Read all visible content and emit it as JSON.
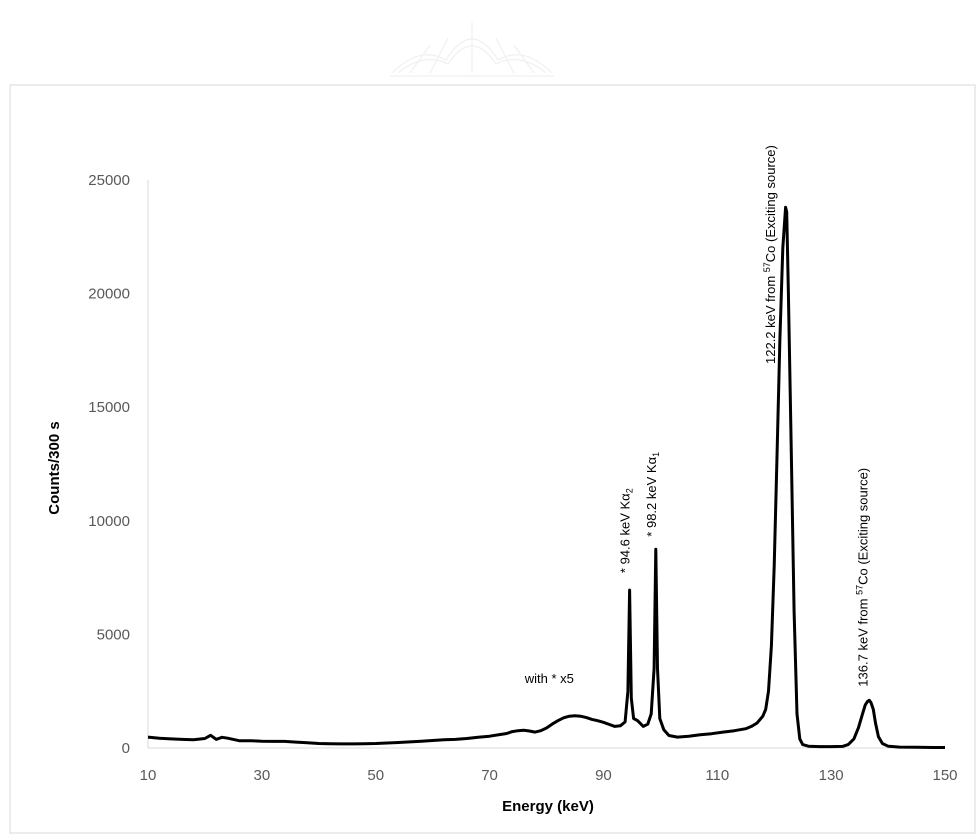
{
  "chart_data": {
    "type": "line",
    "title": "",
    "xlabel": "Energy (keV)",
    "ylabel": "Counts/300 s",
    "xlim": [
      10,
      150
    ],
    "ylim": [
      0,
      25000
    ],
    "x_ticks": [
      "10",
      "30",
      "50",
      "70",
      "90",
      "110",
      "130",
      "150"
    ],
    "y_ticks": [
      "0",
      "5000",
      "10000",
      "15000",
      "20000",
      "25000"
    ],
    "grid": false,
    "legend": "none",
    "line_color": "#000000",
    "series": [
      {
        "x": [
          10,
          12,
          14,
          16,
          18,
          20,
          21,
          22,
          23,
          24,
          26,
          28,
          30,
          32,
          34,
          36,
          38,
          40,
          42,
          44,
          46,
          48,
          50,
          52,
          54,
          56,
          58,
          60,
          62,
          64,
          66,
          68,
          70,
          72,
          73,
          74,
          75,
          76,
          77,
          78,
          79,
          80,
          81,
          82,
          83,
          84,
          85,
          86,
          87,
          88,
          89,
          90,
          91,
          92,
          93,
          93.8,
          94.3,
          94.6,
          94.9,
          95.3,
          96,
          97,
          97.8,
          98.4,
          98.9,
          99.2,
          99.5,
          99.9,
          100.6,
          101.5,
          103,
          105,
          107,
          109,
          111,
          113,
          115,
          116,
          117,
          118,
          118.5,
          119,
          119.5,
          120,
          120.5,
          121,
          121.5,
          122,
          122.2,
          122.5,
          123,
          123.5,
          124,
          124.5,
          125,
          126,
          128,
          130,
          132,
          133,
          134,
          134.8,
          135.5,
          136,
          136.4,
          136.7,
          137,
          137.4,
          137.8,
          138.3,
          139,
          140,
          142,
          145,
          148,
          150
        ],
        "y": [
          480,
          430,
          400,
          380,
          360,
          420,
          560,
          380,
          470,
          430,
          320,
          320,
          300,
          290,
          290,
          260,
          230,
          200,
          190,
          180,
          180,
          190,
          200,
          220,
          240,
          270,
          300,
          330,
          360,
          380,
          420,
          470,
          520,
          600,
          640,
          720,
          760,
          780,
          750,
          700,
          760,
          880,
          1050,
          1200,
          1330,
          1400,
          1420,
          1400,
          1340,
          1260,
          1200,
          1130,
          1040,
          950,
          980,
          1150,
          2500,
          6950,
          2200,
          1300,
          1200,
          950,
          1050,
          1500,
          3500,
          8750,
          3500,
          1300,
          800,
          550,
          480,
          520,
          580,
          630,
          700,
          760,
          850,
          950,
          1100,
          1400,
          1700,
          2500,
          4500,
          8000,
          13000,
          18000,
          22000,
          23800,
          23600,
          20000,
          13000,
          6000,
          1500,
          400,
          150,
          80,
          60,
          60,
          70,
          150,
          400,
          900,
          1500,
          1900,
          2050,
          2100,
          2000,
          1700,
          1100,
          500,
          200,
          80,
          40,
          30,
          20,
          20
        ]
      }
    ],
    "annotations": [
      {
        "id": "peak-94",
        "lead": "* 94.6 keV Kα",
        "sub": "2",
        "tail": "",
        "x": 94.6,
        "y": 7700
      },
      {
        "id": "peak-98",
        "lead": "* 98.2 keV Kα",
        "sub": "1",
        "tail": "",
        "x": 99.2,
        "y": 9300
      },
      {
        "id": "peak-122",
        "lead": "122.2 keV  from ",
        "sup": "57",
        "tail": "Co (Exciting source)",
        "x": 120.1,
        "y": 16900
      },
      {
        "id": "peak-136",
        "lead": "136.7  keV  from ",
        "sup": "57",
        "tail": "Co (Exciting source)",
        "x": 136.4,
        "y": 2700
      },
      {
        "id": "note-x5",
        "text": "with * x5",
        "x": 80.5,
        "y": 2850
      }
    ]
  }
}
